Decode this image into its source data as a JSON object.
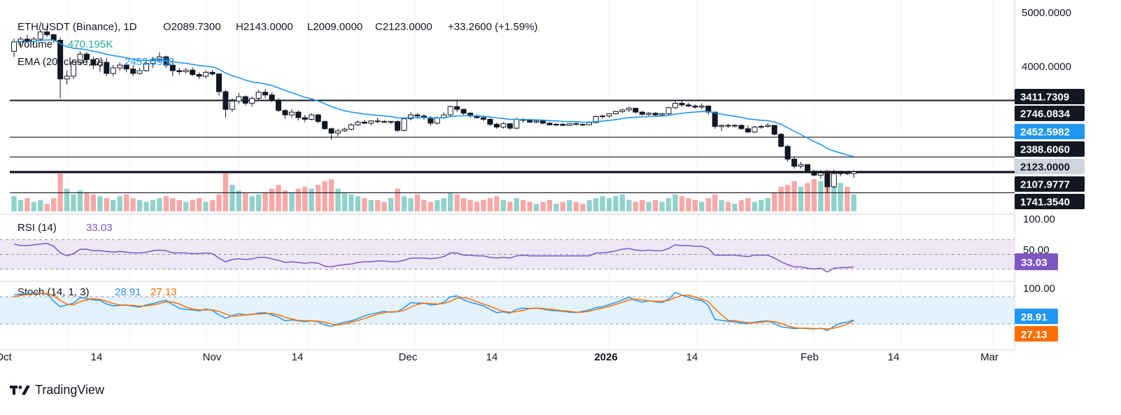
{
  "header": {
    "symbol": "ETH/USDT (Binance), 1D",
    "open": "O2089.7300",
    "high": "H2143.0000",
    "low": "L2009.0000",
    "close": "C2123.0000",
    "change": "+33.2600 (+1.59%)",
    "volume_label": "Volume",
    "volume_value": "470.195K",
    "ema_label": "EMA (20, close, 0)",
    "ema_value": "2452.5982"
  },
  "rsi": {
    "label": "RSI (14)",
    "value": "33.03"
  },
  "stoch": {
    "label": "Stoch (14, 1, 3)",
    "k_value": "28.91",
    "d_value": "27.13"
  },
  "brand": {
    "name": "TradingView"
  },
  "colors": {
    "up": "#26a69a",
    "down": "#ef5350",
    "ema": "#2196f3",
    "rsi": "#7e57c2",
    "stoch_k": "#2196f3",
    "stoch_d": "#ff6d00",
    "rsi_band": "#ede7f6",
    "stoch_band": "#e3f2fd",
    "close_tag": "#d1d4dc"
  },
  "chart_data": {
    "type": "candlestick",
    "price_axis_ticks": [
      "5000.0000",
      "4000.0000"
    ],
    "rsi_axis_ticks": [
      "100.00",
      "50.00"
    ],
    "stoch_axis_ticks": [
      "100.00"
    ],
    "x_tick_labels": [
      "Oct",
      "14",
      "Nov",
      "14",
      "Dec",
      "14",
      "2026",
      "14",
      "Feb",
      "14",
      "Mar"
    ],
    "price_tags": [
      {
        "label": "3411.7309",
        "style": "dark"
      },
      {
        "label": "2746.0834",
        "style": "dark"
      },
      {
        "label": "2452.5982",
        "style": "ema"
      },
      {
        "label": "2388.6060",
        "style": "dark"
      },
      {
        "label": "2123.0000",
        "style": "close"
      },
      {
        "label": "2107.9777",
        "style": "dark"
      },
      {
        "label": "1741.3540",
        "style": "dark"
      }
    ],
    "horizontal_levels": [
      3411.7309,
      2746.0834,
      2388.606,
      2123.0,
      2107.9777,
      1741.354
    ],
    "y_range": [
      1740,
      5000
    ],
    "rsi_bands": {
      "upper": 70,
      "middle": 50,
      "lower": 30
    },
    "stoch_bands": {
      "upper": 80,
      "lower": 20
    },
    "ohlc": [
      [
        4300,
        4530,
        4200,
        4470
      ],
      [
        4470,
        4560,
        4410,
        4520
      ],
      [
        4520,
        4600,
        4460,
        4480
      ],
      [
        4480,
        4560,
        4420,
        4520
      ],
      [
        4520,
        4700,
        4480,
        4650
      ],
      [
        4650,
        4760,
        4560,
        4600
      ],
      [
        4600,
        4620,
        4450,
        4500
      ],
      [
        4500,
        4550,
        3450,
        3800
      ],
      [
        3800,
        3950,
        3700,
        3850
      ],
      [
        3850,
        4150,
        3800,
        4100
      ],
      [
        4100,
        4300,
        4050,
        4250
      ],
      [
        4250,
        4290,
        4050,
        4150
      ],
      [
        4150,
        4200,
        3980,
        4050
      ],
      [
        4050,
        4150,
        3930,
        4100
      ],
      [
        4100,
        4180,
        3850,
        3900
      ],
      [
        3900,
        4050,
        3850,
        4000
      ],
      [
        4000,
        4100,
        3950,
        4050
      ],
      [
        4050,
        4090,
        3920,
        3980
      ],
      [
        3980,
        4050,
        3850,
        3900
      ],
      [
        3900,
        4000,
        3880,
        3950
      ],
      [
        3950,
        4100,
        3930,
        4080
      ],
      [
        4080,
        4200,
        4000,
        4150
      ],
      [
        4150,
        4280,
        4100,
        4200
      ],
      [
        4200,
        4220,
        4000,
        4050
      ],
      [
        4050,
        4100,
        3850,
        3950
      ],
      [
        3950,
        4000,
        3880,
        3930
      ],
      [
        3930,
        4000,
        3900,
        3960
      ],
      [
        3960,
        4010,
        3850,
        3880
      ],
      [
        3880,
        3920,
        3800,
        3850
      ],
      [
        3850,
        3960,
        3810,
        3920
      ],
      [
        3920,
        3960,
        3860,
        3890
      ],
      [
        3890,
        3900,
        3500,
        3570
      ],
      [
        3570,
        3600,
        3100,
        3250
      ],
      [
        3250,
        3450,
        3200,
        3400
      ],
      [
        3400,
        3550,
        3350,
        3480
      ],
      [
        3480,
        3500,
        3320,
        3360
      ],
      [
        3360,
        3480,
        3300,
        3450
      ],
      [
        3450,
        3600,
        3420,
        3560
      ],
      [
        3560,
        3620,
        3450,
        3510
      ],
      [
        3510,
        3560,
        3380,
        3420
      ],
      [
        3420,
        3450,
        3200,
        3230
      ],
      [
        3230,
        3250,
        3080,
        3150
      ],
      [
        3150,
        3250,
        3100,
        3200
      ],
      [
        3200,
        3230,
        3050,
        3100
      ],
      [
        3100,
        3150,
        3020,
        3070
      ],
      [
        3070,
        3180,
        3050,
        3150
      ],
      [
        3150,
        3170,
        3000,
        3030
      ],
      [
        3030,
        3050,
        2880,
        2900
      ],
      [
        2900,
        2920,
        2700,
        2820
      ],
      [
        2820,
        2900,
        2760,
        2860
      ],
      [
        2860,
        2920,
        2840,
        2890
      ],
      [
        2890,
        3000,
        2870,
        2970
      ],
      [
        2970,
        3050,
        2950,
        3020
      ],
      [
        3020,
        3060,
        2980,
        3000
      ],
      [
        3000,
        3060,
        2960,
        3040
      ],
      [
        3040,
        3100,
        3000,
        3030
      ],
      [
        3030,
        3060,
        3000,
        3020
      ],
      [
        3020,
        3040,
        2980,
        3030
      ],
      [
        3030,
        3050,
        2840,
        2870
      ],
      [
        2870,
        3100,
        2850,
        3080
      ],
      [
        3080,
        3200,
        3050,
        3150
      ],
      [
        3150,
        3180,
        3080,
        3130
      ],
      [
        3130,
        3160,
        3060,
        3100
      ],
      [
        3100,
        3130,
        2950,
        3000
      ],
      [
        3000,
        3120,
        2970,
        3100
      ],
      [
        3100,
        3200,
        3080,
        3150
      ],
      [
        3150,
        3320,
        3120,
        3300
      ],
      [
        3300,
        3400,
        3200,
        3250
      ],
      [
        3250,
        3260,
        3150,
        3180
      ],
      [
        3180,
        3200,
        3100,
        3130
      ],
      [
        3130,
        3160,
        3080,
        3100
      ],
      [
        3100,
        3130,
        3040,
        3070
      ],
      [
        3070,
        3090,
        2950,
        2980
      ],
      [
        2980,
        3010,
        2900,
        2930
      ],
      [
        2930,
        3020,
        2900,
        2990
      ],
      [
        2990,
        3000,
        2880,
        2910
      ],
      [
        2910,
        3100,
        2890,
        3070
      ],
      [
        3070,
        3090,
        3010,
        3050
      ],
      [
        3050,
        3080,
        3000,
        3020
      ],
      [
        3020,
        3060,
        3000,
        3040
      ],
      [
        3040,
        3060,
        2980,
        3000
      ],
      [
        3000,
        3020,
        2960,
        2970
      ],
      [
        2970,
        3000,
        2950,
        2980
      ],
      [
        2980,
        3010,
        2950,
        2960
      ],
      [
        2960,
        3000,
        2950,
        2990
      ],
      [
        2990,
        3020,
        2960,
        2980
      ],
      [
        2980,
        3000,
        2940,
        2970
      ],
      [
        2970,
        3020,
        2960,
        3010
      ],
      [
        3010,
        3140,
        3000,
        3120
      ],
      [
        3120,
        3150,
        3080,
        3130
      ],
      [
        3130,
        3180,
        3100,
        3170
      ],
      [
        3170,
        3220,
        3150,
        3210
      ],
      [
        3210,
        3260,
        3180,
        3240
      ],
      [
        3240,
        3300,
        3200,
        3270
      ],
      [
        3270,
        3280,
        3180,
        3200
      ],
      [
        3200,
        3220,
        3140,
        3160
      ],
      [
        3160,
        3200,
        3120,
        3180
      ],
      [
        3180,
        3200,
        3130,
        3150
      ],
      [
        3150,
        3180,
        3120,
        3170
      ],
      [
        3170,
        3300,
        3150,
        3280
      ],
      [
        3280,
        3420,
        3250,
        3360
      ],
      [
        3360,
        3400,
        3300,
        3330
      ],
      [
        3330,
        3370,
        3290,
        3310
      ],
      [
        3310,
        3340,
        3260,
        3290
      ],
      [
        3290,
        3360,
        3250,
        3310
      ],
      [
        3310,
        3320,
        3150,
        3200
      ],
      [
        3200,
        3210,
        2900,
        2940
      ],
      [
        2940,
        2980,
        2860,
        2960
      ],
      [
        2960,
        2990,
        2910,
        2950
      ],
      [
        2950,
        2980,
        2920,
        2960
      ],
      [
        2960,
        2980,
        2880,
        2900
      ],
      [
        2900,
        2960,
        2820,
        2840
      ],
      [
        2840,
        2950,
        2820,
        2930
      ],
      [
        2930,
        2970,
        2900,
        2940
      ],
      [
        2940,
        3000,
        2920,
        2960
      ],
      [
        2960,
        2970,
        2780,
        2800
      ],
      [
        2800,
        2820,
        2560,
        2580
      ],
      [
        2580,
        2610,
        2300,
        2350
      ],
      [
        2350,
        2400,
        2180,
        2220
      ],
      [
        2220,
        2300,
        2180,
        2250
      ],
      [
        2250,
        2260,
        2100,
        2130
      ],
      [
        2130,
        2160,
        2040,
        2060
      ],
      [
        2060,
        2150,
        2000,
        2100
      ],
      [
        2100,
        2130,
        1741,
        1850
      ],
      [
        1850,
        2160,
        1820,
        2090
      ],
      [
        2090,
        2140,
        2040,
        2100
      ],
      [
        2100,
        2120,
        2060,
        2090
      ],
      [
        2090,
        2143,
        2009,
        2123
      ]
    ],
    "rsi_values": [
      64,
      62,
      62,
      63,
      64,
      65,
      61,
      52,
      48,
      51,
      57,
      57,
      55,
      55,
      54,
      53,
      54,
      53,
      52,
      52,
      53,
      55,
      56,
      55,
      52,
      52,
      52,
      51,
      51,
      52,
      51,
      45,
      40,
      43,
      44,
      43,
      44,
      46,
      46,
      44,
      42,
      39,
      40,
      39,
      38,
      39,
      38,
      34,
      33,
      35,
      36,
      37,
      39,
      40,
      40,
      41,
      41,
      40,
      40,
      42,
      45,
      45,
      45,
      44,
      45,
      47,
      52,
      52,
      49,
      49,
      48,
      48,
      46,
      45,
      46,
      45,
      48,
      49,
      48,
      48,
      48,
      48,
      48,
      48,
      48,
      48,
      48,
      48,
      52,
      52,
      53,
      55,
      57,
      58,
      56,
      55,
      56,
      55,
      55,
      58,
      63,
      62,
      62,
      61,
      61,
      58,
      49,
      49,
      49,
      49,
      48,
      47,
      49,
      49,
      49,
      45,
      40,
      36,
      33,
      33,
      31,
      30,
      31,
      26,
      31,
      32,
      32,
      33.03
    ],
    "stoch_k": [
      84,
      86,
      87,
      88,
      88,
      86,
      70,
      58,
      62,
      66,
      78,
      76,
      73,
      72,
      64,
      60,
      61,
      62,
      59,
      57,
      62,
      65,
      69,
      72,
      63,
      55,
      52,
      51,
      49,
      53,
      50,
      40,
      33,
      38,
      43,
      40,
      41,
      44,
      45,
      40,
      35,
      27,
      29,
      27,
      25,
      27,
      25,
      18,
      15,
      20,
      24,
      27,
      32,
      38,
      42,
      45,
      48,
      46,
      47,
      56,
      67,
      66,
      66,
      62,
      63,
      68,
      80,
      82,
      73,
      68,
      64,
      60,
      52,
      45,
      47,
      44,
      52,
      55,
      54,
      55,
      53,
      50,
      49,
      48,
      46,
      45,
      48,
      51,
      56,
      58,
      63,
      67,
      73,
      79,
      72,
      68,
      71,
      69,
      67,
      75,
      89,
      84,
      79,
      74,
      72,
      61,
      30,
      28,
      26,
      25,
      22,
      21,
      24,
      26,
      27,
      21,
      14,
      12,
      10,
      11,
      10,
      9,
      11,
      6,
      15,
      22,
      24,
      28.91
    ],
    "stoch_d": [
      80,
      83,
      85,
      86,
      87,
      87,
      82,
      72,
      64,
      62,
      69,
      73,
      76,
      74,
      70,
      65,
      62,
      61,
      61,
      59,
      60,
      62,
      65,
      69,
      68,
      64,
      57,
      53,
      51,
      51,
      51,
      48,
      42,
      37,
      38,
      40,
      42,
      42,
      43,
      43,
      40,
      35,
      31,
      28,
      27,
      27,
      26,
      24,
      20,
      18,
      20,
      24,
      28,
      32,
      37,
      42,
      45,
      47,
      47,
      50,
      57,
      63,
      66,
      65,
      64,
      65,
      70,
      77,
      78,
      75,
      69,
      64,
      59,
      53,
      48,
      46,
      47,
      50,
      54,
      55,
      54,
      53,
      51,
      49,
      48,
      46,
      46,
      48,
      52,
      55,
      59,
      63,
      68,
      73,
      75,
      73,
      71,
      70,
      70,
      72,
      78,
      83,
      84,
      79,
      75,
      69,
      54,
      40,
      28,
      27,
      25,
      23,
      23,
      24,
      26,
      25,
      21,
      16,
      12,
      11,
      11,
      10,
      10,
      9,
      11,
      15,
      20,
      27.13
    ],
    "volume": [
      8,
      6,
      7,
      5,
      6,
      4,
      7,
      20,
      12,
      9,
      11,
      10,
      9,
      8,
      7,
      6,
      8,
      9,
      7,
      6,
      5,
      6,
      7,
      8,
      7,
      6,
      5,
      6,
      7,
      5,
      6,
      9,
      20,
      14,
      11,
      10,
      8,
      9,
      10,
      12,
      14,
      11,
      10,
      12,
      13,
      12,
      14,
      16,
      17,
      12,
      10,
      9,
      8,
      7,
      6,
      6,
      5,
      7,
      12,
      8,
      7,
      9,
      6,
      5,
      6,
      7,
      10,
      9,
      7,
      6,
      5,
      6,
      7,
      8,
      6,
      5,
      7,
      6,
      5,
      4,
      5,
      6,
      4,
      5,
      6,
      5,
      4,
      6,
      7,
      8,
      7,
      8,
      9,
      6,
      5,
      6,
      5,
      6,
      5,
      7,
      9,
      8,
      7,
      6,
      5,
      7,
      9,
      6,
      5,
      4,
      6,
      7,
      5,
      6,
      7,
      10,
      13,
      14,
      16,
      13,
      15,
      17,
      16,
      22,
      18,
      15,
      13,
      9
    ]
  }
}
